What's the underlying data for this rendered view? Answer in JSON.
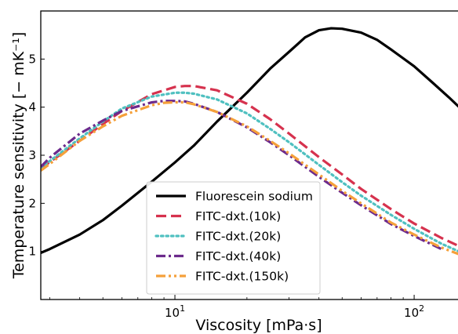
{
  "chart_data": {
    "type": "line",
    "xlabel": "Viscosity [mPa·s]",
    "ylabel": "Temperature sensitivity [− mK⁻¹]",
    "xscale": "log",
    "xlim": [
      2.75,
      162
    ],
    "ylim": [
      0.0,
      6.0
    ],
    "x_ticks": [
      {
        "value": 10,
        "base": "10",
        "exp": "1"
      },
      {
        "value": 100,
        "base": "10",
        "exp": "2"
      }
    ],
    "y_ticks": [
      1,
      2,
      3,
      4,
      5
    ],
    "grid": false,
    "legend_position": "lower center",
    "series": [
      {
        "name": "Fluorescein sodium",
        "color": "#000000",
        "style": "solid",
        "x": [
          2.75,
          3,
          4,
          5,
          6,
          8,
          10,
          12,
          15,
          20,
          25,
          30,
          35,
          40,
          45,
          50,
          60,
          70,
          80,
          100,
          120,
          140,
          162
        ],
        "y": [
          0.97,
          1.05,
          1.35,
          1.65,
          1.95,
          2.45,
          2.85,
          3.2,
          3.7,
          4.3,
          4.8,
          5.15,
          5.45,
          5.6,
          5.64,
          5.63,
          5.55,
          5.4,
          5.2,
          4.85,
          4.5,
          4.2,
          3.9
        ]
      },
      {
        "name": "FITC-dxt.(10k)",
        "color": "#d6324e",
        "style": "dashed",
        "x": [
          2.75,
          3,
          4,
          5,
          6,
          8,
          10,
          11,
          12,
          15,
          20,
          25,
          30,
          40,
          50,
          60,
          80,
          100,
          130,
          162
        ],
        "y": [
          2.72,
          2.86,
          3.3,
          3.65,
          3.92,
          4.27,
          4.42,
          4.44,
          4.44,
          4.35,
          4.07,
          3.75,
          3.45,
          2.96,
          2.6,
          2.3,
          1.88,
          1.58,
          1.28,
          1.06
        ]
      },
      {
        "name": "FITC-dxt.(20k)",
        "color": "#4fc0c0",
        "style": "dotted",
        "x": [
          2.75,
          3,
          4,
          5,
          6,
          8,
          10,
          11,
          12,
          15,
          20,
          25,
          30,
          40,
          50,
          60,
          80,
          100,
          130,
          162
        ],
        "y": [
          2.74,
          2.88,
          3.35,
          3.7,
          3.97,
          4.22,
          4.3,
          4.3,
          4.28,
          4.16,
          3.87,
          3.55,
          3.27,
          2.8,
          2.44,
          2.16,
          1.76,
          1.47,
          1.16,
          0.95
        ]
      },
      {
        "name": "FITC-dxt.(40k)",
        "color": "#6c2a8c",
        "style": "dashdot",
        "x": [
          2.75,
          3,
          4,
          5,
          6,
          8,
          9,
          10,
          11,
          12,
          15,
          20,
          25,
          30,
          40,
          50,
          60,
          80,
          100,
          130
        ],
        "y": [
          2.76,
          2.95,
          3.45,
          3.72,
          3.92,
          4.1,
          4.13,
          4.13,
          4.12,
          4.07,
          3.9,
          3.58,
          3.27,
          3.0,
          2.55,
          2.22,
          1.96,
          1.57,
          1.32,
          1.05
        ]
      },
      {
        "name": "FITC-dxt.(150k)",
        "color": "#f5a03a",
        "style": "dashdotdot",
        "x": [
          2.75,
          3,
          4,
          5,
          6,
          8,
          9,
          10,
          11,
          12,
          15,
          20,
          25,
          30,
          40,
          50,
          60,
          80,
          100,
          130,
          162
        ],
        "y": [
          2.68,
          2.82,
          3.3,
          3.6,
          3.82,
          4.04,
          4.09,
          4.1,
          4.1,
          4.06,
          3.9,
          3.6,
          3.3,
          3.04,
          2.6,
          2.26,
          2.0,
          1.6,
          1.35,
          1.08,
          0.9
        ]
      }
    ]
  }
}
